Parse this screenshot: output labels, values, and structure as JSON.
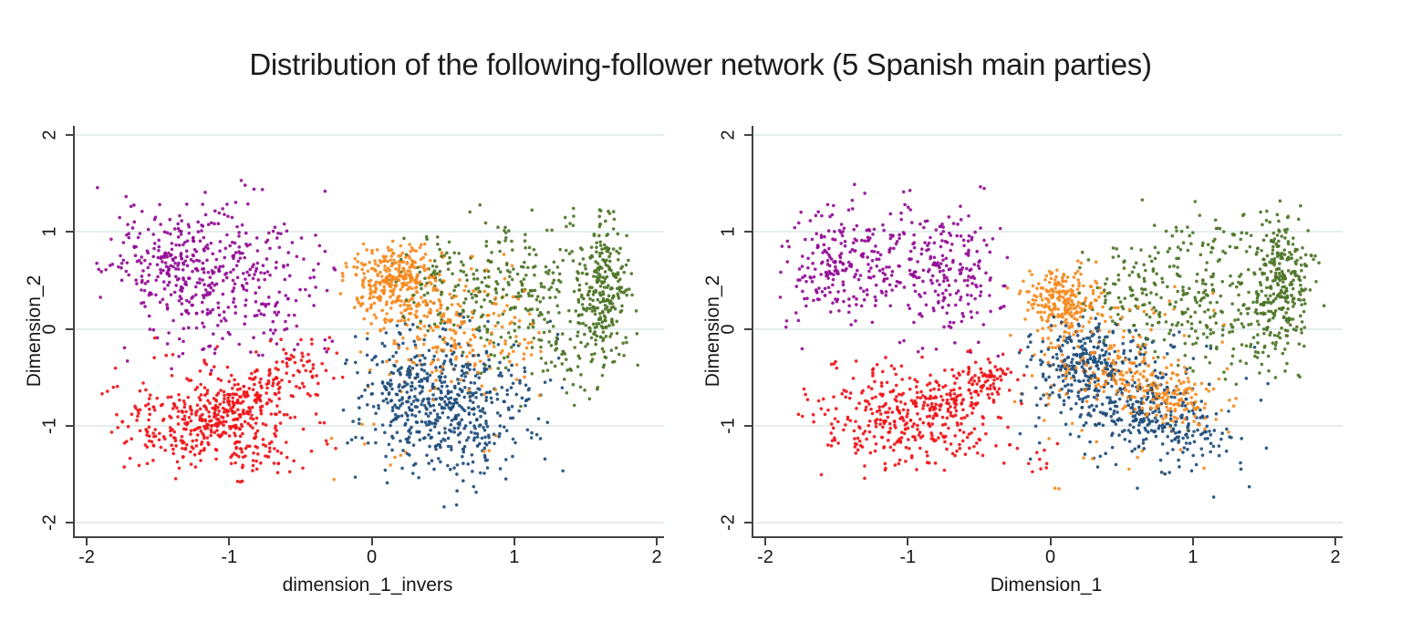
{
  "chart_data": {
    "type": "scatter",
    "title": "Distribution of the following-follower network (5 Spanish main parties)",
    "legend": "none",
    "grid": "horizontal-only",
    "grid_color": "#e4edec",
    "axis_color": "#424242",
    "marker": {
      "shape": "circle",
      "radius_px": 1.8
    },
    "palette": {
      "purple": "#930d96",
      "red": "#f01418",
      "orange": "#f68a1e",
      "navy": "#1f4e7c",
      "green": "#4d7527"
    },
    "panels": [
      {
        "xlabel": "dimension_1_invers",
        "ylabel": "Dimension_2",
        "xlim": [
          -2,
          2
        ],
        "ylim": [
          -2,
          2
        ],
        "xticks": [
          "-2",
          "-1",
          "0",
          "1",
          "2"
        ],
        "yticks": [
          "2",
          "1",
          "0",
          "-1",
          "-2"
        ],
        "ytick_values": [
          2,
          1,
          0,
          -1,
          -2
        ],
        "xtick_values": [
          -2,
          -1,
          0,
          1,
          2
        ],
        "series": [
          {
            "name": "cluster-purple",
            "color": "#930d96",
            "clusters": [
              {
                "kind": "gauss",
                "cx": -1.35,
                "cy": 0.7,
                "sx": 0.26,
                "sy": 0.3,
                "n": 230,
                "clip": [
                  -1.95,
                  -0.25,
                  -0.45,
                  1.55
                ]
              },
              {
                "kind": "gauss",
                "cx": -0.85,
                "cy": 0.45,
                "sx": 0.3,
                "sy": 0.4,
                "n": 180,
                "clip": [
                  -1.95,
                  -0.25,
                  -0.45,
                  1.55
                ]
              },
              {
                "kind": "gauss",
                "cx": -1.15,
                "cy": 0.55,
                "sx": 0.45,
                "sy": 0.5,
                "n": 90,
                "clip": [
                  -1.95,
                  -0.28,
                  -0.5,
                  1.55
                ]
              }
            ]
          },
          {
            "name": "cluster-red",
            "color": "#f01418",
            "clusters": [
              {
                "kind": "gauss",
                "cx": -1.05,
                "cy": -0.95,
                "sx": 0.33,
                "sy": 0.26,
                "n": 260,
                "clip": [
                  -1.95,
                  -0.2,
                  -1.6,
                  -0.05
                ]
              },
              {
                "kind": "band",
                "x1": -1.35,
                "y1": -1.15,
                "x2": -0.42,
                "y2": -0.32,
                "jx": 0.1,
                "jy": 0.1,
                "n": 180,
                "clip": [
                  -1.95,
                  -0.2,
                  -1.6,
                  -0.05
                ]
              },
              {
                "kind": "gauss",
                "cx": -1.0,
                "cy": -0.8,
                "sx": 0.45,
                "sy": 0.38,
                "n": 110,
                "clip": [
                  -1.95,
                  -0.15,
                  -1.6,
                  -0.05
                ]
              },
              {
                "kind": "gauss",
                "cx": -0.75,
                "cy": -1.35,
                "sx": 0.25,
                "sy": 0.14,
                "n": 30,
                "clip": [
                  -1.6,
                  -0.3,
                  -1.62,
                  -1.1
                ]
              }
            ]
          },
          {
            "name": "cluster-green",
            "color": "#4d7527",
            "clusters": [
              {
                "kind": "gauss",
                "cx": 1.63,
                "cy": 0.45,
                "sx": 0.09,
                "sy": 0.4,
                "n": 240,
                "clip": [
                  1.35,
                  1.95,
                  -0.45,
                  1.3
                ]
              },
              {
                "kind": "gauss",
                "cx": 1.05,
                "cy": 0.35,
                "sx": 0.33,
                "sy": 0.42,
                "n": 270,
                "clip": [
                  0.25,
                  1.95,
                  -0.5,
                  1.3
                ]
              },
              {
                "kind": "gauss",
                "cx": 0.55,
                "cy": 0.5,
                "sx": 0.22,
                "sy": 0.28,
                "n": 80,
                "clip": [
                  0.1,
                  1.1,
                  -0.1,
                  1.0
                ]
              },
              {
                "kind": "gauss",
                "cx": 1.45,
                "cy": -0.3,
                "sx": 0.25,
                "sy": 0.22,
                "n": 45,
                "clip": [
                  0.9,
                  1.95,
                  -0.95,
                  0.1
                ]
              }
            ]
          },
          {
            "name": "cluster-orange",
            "color": "#f68a1e",
            "clusters": [
              {
                "kind": "gauss",
                "cx": 0.16,
                "cy": 0.5,
                "sx": 0.15,
                "sy": 0.19,
                "n": 300,
                "clip": [
                  -0.3,
                  0.8,
                  -0.1,
                  0.95
                ]
              },
              {
                "kind": "gauss",
                "cx": 0.45,
                "cy": 0.05,
                "sx": 0.3,
                "sy": 0.35,
                "n": 180,
                "clip": [
                  -0.15,
                  1.15,
                  -0.75,
                  0.8
                ]
              },
              {
                "kind": "gauss",
                "cx": 0.75,
                "cy": -0.2,
                "sx": 0.3,
                "sy": 0.3,
                "n": 70,
                "clip": [
                  0.1,
                  1.2,
                  -0.8,
                  0.5
                ]
              },
              {
                "kind": "gauss",
                "cx": 0.2,
                "cy": -1.25,
                "sx": 0.45,
                "sy": 0.25,
                "n": 12,
                "clip": [
                  -0.5,
                  1.0,
                  -1.7,
                  -0.85
                ]
              }
            ]
          },
          {
            "name": "cluster-navy",
            "color": "#1f4e7c",
            "clusters": [
              {
                "kind": "gauss",
                "cx": 0.4,
                "cy": -0.6,
                "sx": 0.22,
                "sy": 0.27,
                "n": 280,
                "clip": [
                  -0.15,
                  1.2,
                  -1.8,
                  0.1
                ]
              },
              {
                "kind": "gauss",
                "cx": 0.62,
                "cy": -1.05,
                "sx": 0.28,
                "sy": 0.28,
                "n": 190,
                "clip": [
                  -0.1,
                  1.3,
                  -1.85,
                  -0.3
                ]
              },
              {
                "kind": "gauss",
                "cx": 0.55,
                "cy": -0.6,
                "sx": 0.42,
                "sy": 0.5,
                "n": 130,
                "clip": [
                  -0.2,
                  1.35,
                  -1.85,
                  0.15
                ]
              }
            ]
          }
        ]
      },
      {
        "xlabel": "Dimension_1",
        "ylabel": "Dimension_2",
        "xlim": [
          -2,
          2
        ],
        "ylim": [
          -2,
          2
        ],
        "xticks": [
          "-2",
          "-1",
          "0",
          "1",
          "2"
        ],
        "yticks": [
          "2",
          "1",
          "0",
          "-1",
          "-2"
        ],
        "ytick_values": [
          2,
          1,
          0,
          -1,
          -2
        ],
        "xtick_values": [
          -2,
          -1,
          0,
          1,
          2
        ],
        "series": [
          {
            "name": "cluster-purple",
            "color": "#930d96",
            "clusters": [
              {
                "kind": "gauss",
                "cx": -1.45,
                "cy": 0.7,
                "sx": 0.22,
                "sy": 0.28,
                "n": 190,
                "clip": [
                  -1.92,
                  -0.3,
                  -0.25,
                  1.5
                ]
              },
              {
                "kind": "gauss",
                "cx": -0.75,
                "cy": 0.55,
                "sx": 0.24,
                "sy": 0.33,
                "n": 190,
                "clip": [
                  -1.9,
                  -0.3,
                  -0.25,
                  1.5
                ]
              },
              {
                "kind": "gauss",
                "cx": -1.1,
                "cy": 0.6,
                "sx": 0.42,
                "sy": 0.42,
                "n": 90,
                "clip": [
                  -1.92,
                  -0.3,
                  -0.3,
                  1.5
                ]
              }
            ]
          },
          {
            "name": "cluster-red",
            "color": "#f01418",
            "clusters": [
              {
                "kind": "gauss",
                "cx": -1.0,
                "cy": -0.95,
                "sx": 0.3,
                "sy": 0.24,
                "n": 250,
                "clip": [
                  -1.8,
                  -0.2,
                  -1.55,
                  -0.1
                ]
              },
              {
                "kind": "band",
                "x1": -0.78,
                "y1": -0.8,
                "x2": -0.3,
                "y2": -0.42,
                "jx": 0.09,
                "jy": 0.09,
                "n": 120,
                "clip": [
                  -1.8,
                  -0.15,
                  -1.55,
                  -0.1
                ]
              },
              {
                "kind": "gauss",
                "cx": -0.95,
                "cy": -0.8,
                "sx": 0.4,
                "sy": 0.33,
                "n": 100,
                "clip": [
                  -1.8,
                  -0.2,
                  -1.55,
                  -0.1
                ]
              },
              {
                "kind": "gauss",
                "cx": -0.15,
                "cy": -1.3,
                "sx": 0.2,
                "sy": 0.12,
                "n": 14,
                "clip": [
                  -0.6,
                  0.15,
                  -1.55,
                  -1.05
                ]
              }
            ]
          },
          {
            "name": "cluster-green",
            "color": "#4d7527",
            "clusters": [
              {
                "kind": "gauss",
                "cx": 1.62,
                "cy": 0.5,
                "sx": 0.1,
                "sy": 0.38,
                "n": 230,
                "clip": [
                  1.35,
                  1.93,
                  -0.3,
                  1.35
                ]
              },
              {
                "kind": "gauss",
                "cx": 1.1,
                "cy": 0.4,
                "sx": 0.36,
                "sy": 0.4,
                "n": 290,
                "clip": [
                  0.2,
                  1.93,
                  -0.45,
                  1.35
                ]
              },
              {
                "kind": "gauss",
                "cx": 0.55,
                "cy": 0.35,
                "sx": 0.2,
                "sy": 0.25,
                "n": 60,
                "clip": [
                  0.15,
                  1.0,
                  -0.15,
                  0.9
                ]
              },
              {
                "kind": "gauss",
                "cx": 1.35,
                "cy": -0.2,
                "sx": 0.25,
                "sy": 0.2,
                "n": 40,
                "clip": [
                  0.85,
                  1.93,
                  -0.8,
                  0.2
                ]
              }
            ]
          },
          {
            "name": "cluster-orange",
            "color": "#f68a1e",
            "clusters": [
              {
                "kind": "gauss",
                "cx": 0.08,
                "cy": 0.28,
                "sx": 0.14,
                "sy": 0.17,
                "n": 230,
                "clip": [
                  -0.35,
                  0.5,
                  -0.15,
                  0.7
                ]
              },
              {
                "kind": "band",
                "x1": 0.3,
                "y1": -0.35,
                "x2": 1.05,
                "y2": -0.85,
                "jx": 0.16,
                "jy": 0.13,
                "n": 230,
                "clip": [
                  -0.1,
                  1.45,
                  -1.35,
                  0.1
                ]
              },
              {
                "kind": "gauss",
                "cx": 0.45,
                "cy": -0.3,
                "sx": 0.4,
                "sy": 0.4,
                "n": 120,
                "clip": [
                  -0.3,
                  1.4,
                  -1.4,
                  0.45
                ]
              },
              {
                "kind": "gauss",
                "cx": 0.6,
                "cy": -1.45,
                "sx": 0.45,
                "sy": 0.15,
                "n": 10,
                "clip": [
                  -0.2,
                  1.4,
                  -1.75,
                  -1.1
                ]
              }
            ]
          },
          {
            "name": "cluster-navy",
            "color": "#1f4e7c",
            "clusters": [
              {
                "kind": "gauss",
                "cx": 0.28,
                "cy": -0.35,
                "sx": 0.2,
                "sy": 0.24,
                "n": 260,
                "clip": [
                  -0.3,
                  1.0,
                  -1.1,
                  0.15
                ]
              },
              {
                "kind": "band",
                "x1": 0.45,
                "y1": -0.7,
                "x2": 1.1,
                "y2": -1.2,
                "jx": 0.17,
                "jy": 0.15,
                "n": 210,
                "clip": [
                  -0.1,
                  1.5,
                  -1.75,
                  -0.2
                ]
              },
              {
                "kind": "gauss",
                "cx": 0.55,
                "cy": -0.7,
                "sx": 0.42,
                "sy": 0.45,
                "n": 150,
                "clip": [
                  -0.35,
                  1.55,
                  -1.8,
                  0.1
                ]
              }
            ]
          }
        ]
      }
    ]
  }
}
